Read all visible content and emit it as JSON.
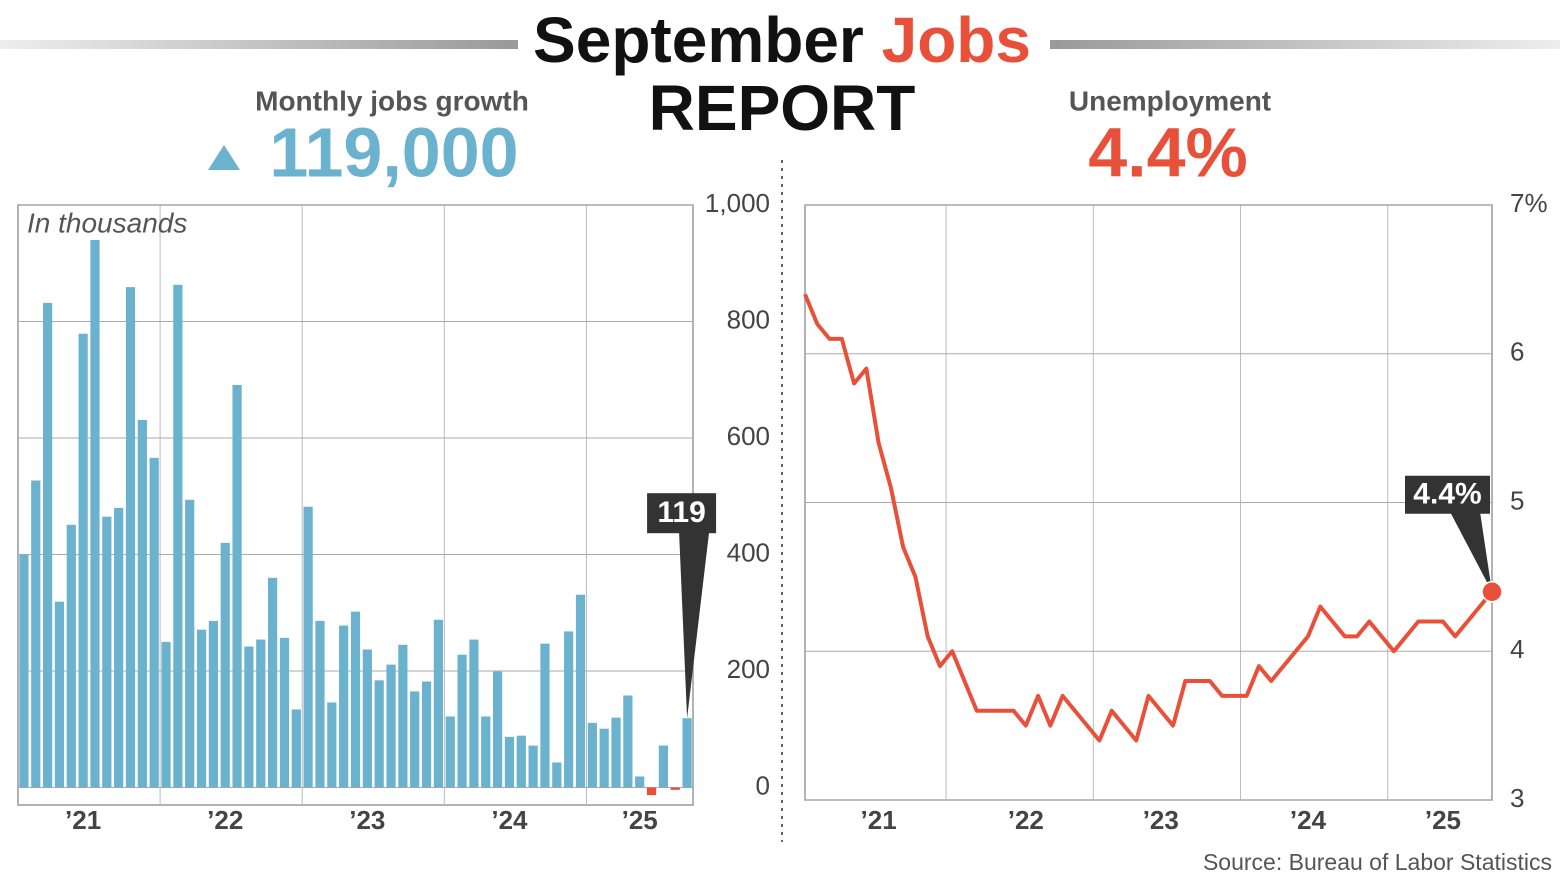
{
  "title": {
    "first": "September",
    "accent": "Jobs",
    "second": "REPORT"
  },
  "source": "Source: Bureau of Labor Statistics",
  "chart_data": [
    {
      "type": "bar",
      "subtitle": "Monthly jobs growth",
      "headline": "119,000",
      "annotation": "In thousands",
      "categories": [
        null,
        null,
        null,
        null,
        null,
        "’21",
        null,
        null,
        null,
        null,
        null,
        null,
        null,
        null,
        null,
        null,
        null,
        "’22",
        null,
        null,
        null,
        null,
        null,
        null,
        null,
        null,
        null,
        null,
        null,
        "’23",
        null,
        null,
        null,
        null,
        null,
        null,
        null,
        null,
        null,
        null,
        null,
        "’24",
        null,
        null,
        null,
        null,
        null,
        null,
        null,
        null,
        null,
        null,
        "’25",
        null,
        null,
        null,
        null
      ],
      "values": [
        400,
        527,
        832,
        319,
        451,
        779,
        940,
        465,
        480,
        859,
        631,
        566,
        250,
        863,
        494,
        271,
        286,
        420,
        691,
        242,
        254,
        360,
        257,
        134,
        482,
        286,
        146,
        278,
        302,
        237,
        184,
        211,
        245,
        165,
        182,
        288,
        122,
        228,
        254,
        122,
        199,
        87,
        89,
        72,
        247,
        43,
        268,
        331,
        111,
        101,
        120,
        158,
        19,
        -13,
        72,
        -4,
        119
      ],
      "color": "#6bb2ce",
      "negative_color": "#e8503a",
      "ylim": [
        -30,
        1000
      ],
      "yticks": [
        0,
        200,
        400,
        600,
        800,
        {
          "value": 1000,
          "label": "1,000"
        }
      ],
      "grid": true
    },
    {
      "type": "line",
      "subtitle": "Unemployment",
      "headline": "4.4%",
      "categories": [
        null,
        null,
        null,
        null,
        null,
        null,
        "’21",
        null,
        null,
        null,
        null,
        null,
        null,
        null,
        null,
        null,
        null,
        null,
        "’22",
        null,
        null,
        null,
        null,
        null,
        null,
        null,
        null,
        null,
        null,
        "’23",
        null,
        null,
        null,
        null,
        null,
        null,
        null,
        null,
        null,
        null,
        null,
        "’24",
        null,
        null,
        null,
        null,
        null,
        null,
        null,
        null,
        null,
        null,
        "’25",
        null,
        null,
        null,
        null
      ],
      "values": [
        6.4,
        6.2,
        6.1,
        6.1,
        5.8,
        5.9,
        5.4,
        5.1,
        4.7,
        4.5,
        4.1,
        3.9,
        4.0,
        3.8,
        3.6,
        3.6,
        3.6,
        3.6,
        3.5,
        3.7,
        3.5,
        3.7,
        3.6,
        3.5,
        3.4,
        3.6,
        3.5,
        3.4,
        3.7,
        3.6,
        3.5,
        3.8,
        3.8,
        3.8,
        3.7,
        3.7,
        3.7,
        3.9,
        3.8,
        3.9,
        4.0,
        4.1,
        4.3,
        4.2,
        4.1,
        4.1,
        4.2,
        4.1,
        4.0,
        4.1,
        4.2,
        4.2,
        4.2,
        4.1,
        4.2,
        4.3,
        4.4
      ],
      "value_labels": [
        null,
        null,
        null,
        null,
        null,
        null,
        null,
        null,
        null,
        null,
        null,
        null,
        null,
        null,
        null,
        null,
        null,
        null,
        null,
        null,
        null,
        null,
        null,
        null,
        null,
        null,
        null,
        null,
        null,
        null,
        null,
        null,
        null,
        null,
        null,
        null,
        null,
        null,
        null,
        null,
        null,
        null,
        null,
        null,
        null,
        null,
        null,
        null,
        null,
        null,
        null,
        null,
        null,
        null,
        null,
        null,
        "4.4%"
      ],
      "color": "#e8503a",
      "ylim": [
        3,
        7
      ],
      "yticks": [
        3,
        4,
        5,
        6,
        {
          "value": 7,
          "label": "7%"
        }
      ],
      "grid": true
    }
  ]
}
